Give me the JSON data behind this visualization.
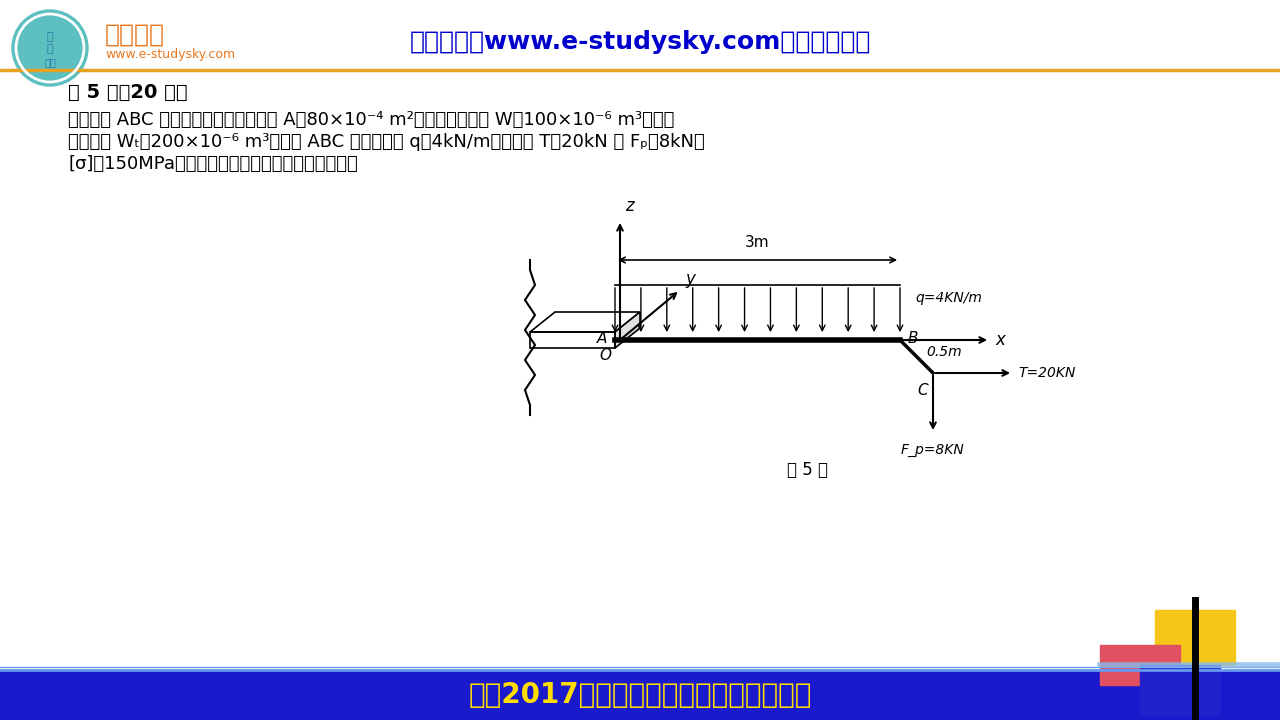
{
  "bg_color": "#ffffff",
  "header_bg": "#ffffff",
  "footer_bg": "#1a1aaa",
  "title_text": "网学天地（www.e-studysky.com）版权所有！",
  "title_color": "#0000cc",
  "logo_text": "网学天地",
  "logo_sub": "www.e-studysky.com",
  "logo_color": "#e87820",
  "header_line_color": "#e8a020",
  "question_title": "第 5 题（20 分）",
  "question_title_color": "#000000",
  "question_title_bold": true,
  "body_text_line1": "已知曲杆 ABC 为圆截面杆。横截面面积 A＝80×10⁻⁴ m²，抗弯截面系数 W＝100×10⁻⁶ m³，抗扰",
  "body_text_line2": "截面系数 Wₜ＝200×10⁻⁶ m³。曲杆 ABC 受均布载荷 q＝4kN/m，集中力 T＝20kN 及 Fₚ＝8kN。",
  "body_text_line3": "[σ]＝150MPa，试根据第四强度理论校核此杆强度。",
  "diagram_label": "第 5 题",
  "footer_text": "南航2017年《材料力学》考研真题与详解",
  "footer_color": "#ffdd00",
  "footer_text_color": "#ffdd00",
  "deco_yellow": "#f5c518",
  "deco_red": "#e05050",
  "deco_blue": "#2222cc"
}
